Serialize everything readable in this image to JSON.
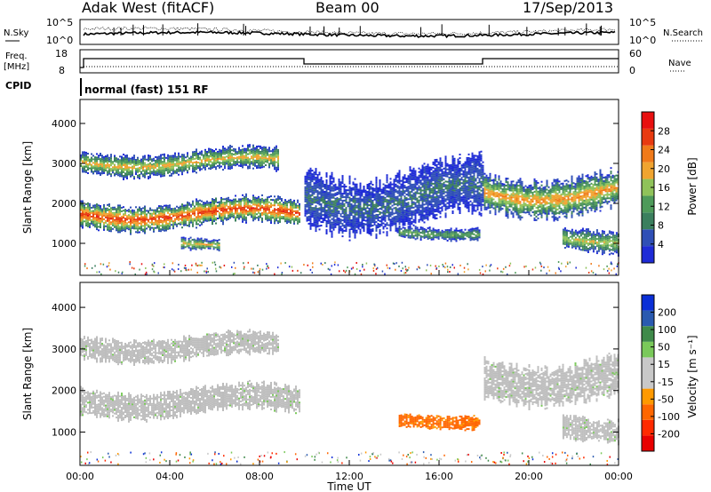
{
  "header": {
    "station": "Adak West (fitACF)",
    "beam": "Beam 00",
    "date": "17/Sep/2013"
  },
  "noise_panel": {
    "left_label": "N.Sky",
    "right_label": "N.Search",
    "left_ticks": [
      "10^5",
      "10^0"
    ],
    "right_ticks": [
      "10^5",
      "10^0"
    ]
  },
  "freq_panel": {
    "left_label_1": "Freq.",
    "left_label_2": "[MHz]",
    "right_label": "Nave",
    "left_ticks": [
      "18",
      "8"
    ],
    "right_ticks": [
      "60",
      "0"
    ]
  },
  "cpid": {
    "label": "CPID",
    "value": "normal (fast) 151 RF"
  },
  "colors": {
    "power_scale": [
      "#1e2bd6",
      "#2f4fb6",
      "#3b7f5e",
      "#4e9a5a",
      "#8fc25a",
      "#f0a430",
      "#f07a1a",
      "#e83a10",
      "#e81010"
    ],
    "velocity_scale": [
      "#0a2fd6",
      "#2a5ab0",
      "#3f8a4a",
      "#7ac95a",
      "#c8c8c8",
      "#c8c8c8",
      "#ff9900",
      "#ff6600",
      "#ff2a00",
      "#e80000"
    ],
    "scatter_grey": "#bdbdbd"
  },
  "chart_data": [
    {
      "type": "heatmap",
      "title": "",
      "ylabel": "Slant Range [km]",
      "yticks": [
        "1000",
        "2000",
        "3000",
        "4000"
      ],
      "ylim": [
        200,
        4600
      ],
      "xlim": [
        0,
        24
      ],
      "colorbar_label": "Power [dB]",
      "colorbar_ticks": [
        "4",
        "8",
        "12",
        "16",
        "20",
        "24",
        "28"
      ],
      "colorbar_range": [
        0,
        32
      ],
      "echo_regions": [
        {
          "name": "band_main",
          "x": [
            0,
            9.8
          ],
          "range_km": [
            1350,
            2150
          ],
          "peak_db": 28
        },
        {
          "name": "band_upper_early",
          "x": [
            0,
            8.8
          ],
          "range_km": [
            2700,
            3400
          ],
          "peak_db": 20
        },
        {
          "name": "arc_midnight",
          "x": [
            10,
            18
          ],
          "range_km": [
            1300,
            3100
          ],
          "peak_db": 8
        },
        {
          "name": "patch_low",
          "x": [
            14.2,
            17.8
          ],
          "range_km": [
            1100,
            1500
          ],
          "peak_db": 14
        },
        {
          "name": "band_late",
          "x": [
            18,
            24
          ],
          "range_km": [
            1700,
            2900
          ],
          "peak_db": 22
        },
        {
          "name": "band_late_low",
          "x": [
            21.5,
            24
          ],
          "range_km": [
            800,
            1500
          ],
          "peak_db": 18
        },
        {
          "name": "patch_near",
          "x": [
            4.5,
            6.2
          ],
          "range_km": [
            850,
            1200
          ],
          "peak_db": 20
        }
      ]
    },
    {
      "type": "heatmap",
      "title": "",
      "ylabel": "Slant Range [km]",
      "yticks": [
        "1000",
        "2000",
        "3000",
        "4000"
      ],
      "ylim": [
        200,
        4600
      ],
      "xlim": [
        0,
        24
      ],
      "xlabel": "Time UT",
      "xticks": [
        "00:00",
        "04:00",
        "08:00",
        "12:00",
        "16:00",
        "20:00",
        "00:00"
      ],
      "colorbar_label": "Velocity [m s⁻¹]",
      "colorbar_ticks": [
        "200",
        "100",
        "50",
        "15",
        "-15",
        "-50",
        "-100",
        "-200"
      ],
      "colorbar_range": [
        -250,
        250
      ],
      "echo_regions": [
        {
          "name": "ground_scatter_main",
          "x": [
            0,
            9.8
          ],
          "range_km": [
            1350,
            2150
          ],
          "velocity": 0
        },
        {
          "name": "ground_scatter_upper",
          "x": [
            0,
            8.8
          ],
          "range_km": [
            2700,
            3400
          ],
          "velocity": 0
        },
        {
          "name": "orange_patch",
          "x": [
            14.2,
            17.8
          ],
          "range_km": [
            1100,
            1500
          ],
          "velocity": -60
        },
        {
          "name": "late_band",
          "x": [
            18,
            24
          ],
          "range_km": [
            1700,
            2900
          ],
          "velocity": 0
        },
        {
          "name": "late_band_low",
          "x": [
            21.5,
            24
          ],
          "range_km": [
            800,
            1500
          ],
          "velocity": 0
        }
      ]
    }
  ],
  "axis_title_time": "Time UT"
}
